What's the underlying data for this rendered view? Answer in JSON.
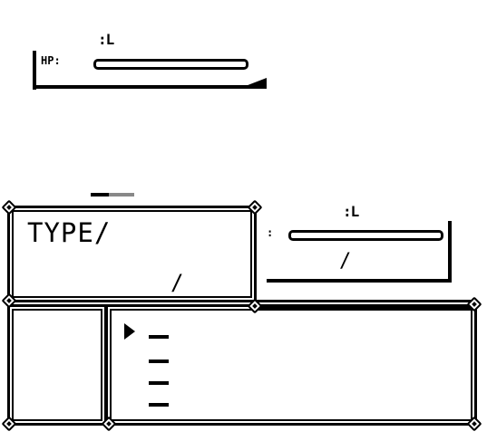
{
  "enemy": {
    "level_label": ":L",
    "hp_label": "HP:",
    "hp_fraction": 1.0
  },
  "player": {
    "level_label": ":L",
    "hp_label": ":",
    "hp_fraction": 1.0,
    "hp_slash": "/"
  },
  "type_box": {
    "type_label": "TYPE/",
    "slash": "/"
  },
  "move_menu": {
    "cursor": "▶",
    "moves": [
      "—",
      "—",
      "—",
      "—"
    ],
    "selected_index": 0
  }
}
